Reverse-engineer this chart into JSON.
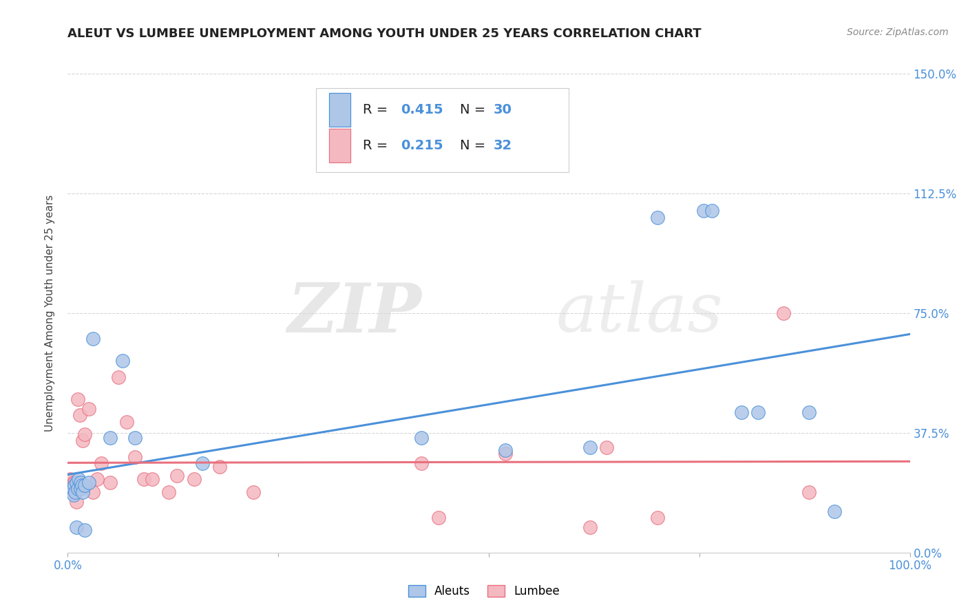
{
  "title": "ALEUT VS LUMBEE UNEMPLOYMENT AMONG YOUTH UNDER 25 YEARS CORRELATION CHART",
  "source": "Source: ZipAtlas.com",
  "ylabel": "Unemployment Among Youth under 25 years",
  "xlim": [
    0.0,
    1.0
  ],
  "ylim": [
    0.0,
    1.5
  ],
  "yticks": [
    0.0,
    0.375,
    0.75,
    1.125,
    1.5
  ],
  "ytick_labels": [
    "0.0%",
    "37.5%",
    "75.0%",
    "112.5%",
    "150.0%"
  ],
  "xticks": [
    0.0,
    0.25,
    0.5,
    0.75,
    1.0
  ],
  "xtick_labels": [
    "0.0%",
    "",
    "",
    "",
    "100.0%"
  ],
  "aleuts_R": "0.415",
  "aleuts_N": "30",
  "lumbee_R": "0.215",
  "lumbee_N": "32",
  "aleuts_color": "#aec6e8",
  "lumbee_color": "#f4b8c1",
  "trend_aleuts_color": "#4a90d9",
  "trend_lumbee_color": "#e8707e",
  "watermark_zip": "ZIP",
  "watermark_atlas": "atlas",
  "aleuts_x": [
    0.005,
    0.007,
    0.008,
    0.009,
    0.01,
    0.01,
    0.012,
    0.013,
    0.015,
    0.015,
    0.017,
    0.018,
    0.02,
    0.02,
    0.025,
    0.03,
    0.05,
    0.065,
    0.08,
    0.16,
    0.42,
    0.52,
    0.62,
    0.7,
    0.755,
    0.765,
    0.8,
    0.82,
    0.88,
    0.91
  ],
  "aleuts_y": [
    0.2,
    0.18,
    0.21,
    0.19,
    0.22,
    0.08,
    0.2,
    0.23,
    0.22,
    0.2,
    0.21,
    0.19,
    0.07,
    0.21,
    0.22,
    0.67,
    0.36,
    0.6,
    0.36,
    0.28,
    0.36,
    0.32,
    0.33,
    1.05,
    1.07,
    1.07,
    0.44,
    0.44,
    0.44,
    0.13
  ],
  "lumbee_x": [
    0.003,
    0.005,
    0.007,
    0.008,
    0.01,
    0.012,
    0.014,
    0.018,
    0.02,
    0.025,
    0.03,
    0.035,
    0.04,
    0.05,
    0.06,
    0.07,
    0.08,
    0.09,
    0.1,
    0.12,
    0.13,
    0.15,
    0.18,
    0.22,
    0.42,
    0.44,
    0.52,
    0.62,
    0.64,
    0.7,
    0.85,
    0.88
  ],
  "lumbee_y": [
    0.23,
    0.2,
    0.22,
    0.22,
    0.16,
    0.48,
    0.43,
    0.35,
    0.37,
    0.45,
    0.19,
    0.23,
    0.28,
    0.22,
    0.55,
    0.41,
    0.3,
    0.23,
    0.23,
    0.19,
    0.24,
    0.23,
    0.27,
    0.19,
    0.28,
    0.11,
    0.31,
    0.08,
    0.33,
    0.11,
    0.75,
    0.19
  ],
  "title_fontsize": 13,
  "source_fontsize": 10,
  "axis_label_fontsize": 11,
  "tick_fontsize": 12,
  "legend_fontsize": 14
}
